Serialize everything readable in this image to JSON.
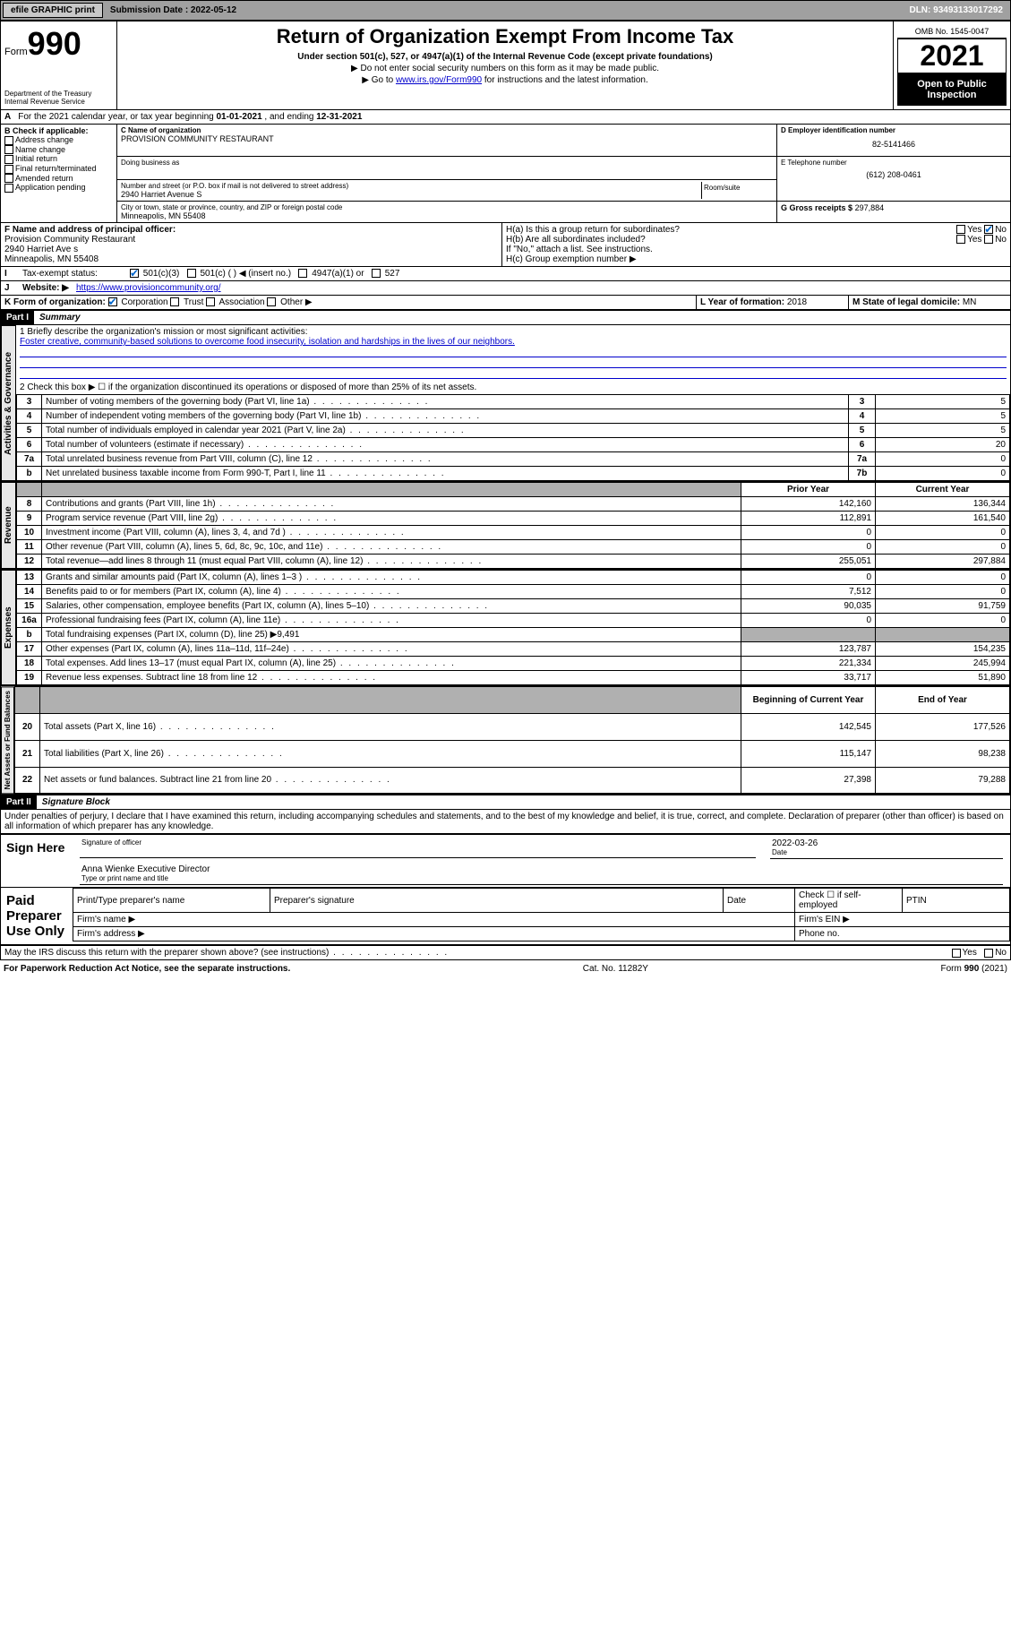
{
  "topbar": {
    "efile": "efile GRAPHIC print",
    "sub_label": "Submission Date : 2022-05-12",
    "dln": "DLN: 93493133017292"
  },
  "header": {
    "form_word": "Form",
    "form_num": "990",
    "dept": "Department of the Treasury",
    "irs": "Internal Revenue Service",
    "title": "Return of Organization Exempt From Income Tax",
    "sub1": "Under section 501(c), 527, or 4947(a)(1) of the Internal Revenue Code (except private foundations)",
    "sub2": "▶ Do not enter social security numbers on this form as it may be made public.",
    "sub3_pre": "▶ Go to ",
    "sub3_link": "www.irs.gov/Form990",
    "sub3_post": " for instructions and the latest information.",
    "omb": "OMB No. 1545-0047",
    "year": "2021",
    "open": "Open to Public Inspection"
  },
  "periodA": {
    "text_pre": "For the 2021 calendar year, or tax year beginning ",
    "begin": "01-01-2021",
    "mid": " , and ending ",
    "end": "12-31-2021"
  },
  "blockB": {
    "label": "B Check if applicable:",
    "items": [
      "Address change",
      "Name change",
      "Initial return",
      "Final return/terminated",
      "Amended return",
      "Application pending"
    ]
  },
  "blockC": {
    "label": "C Name of organization",
    "org": "PROVISION COMMUNITY RESTAURANT",
    "dba_label": "Doing business as",
    "addr_label": "Number and street (or P.O. box if mail is not delivered to street address)",
    "room_label": "Room/suite",
    "addr": "2940 Harriet Avenue S",
    "city_label": "City or town, state or province, country, and ZIP or foreign postal code",
    "city": "Minneapolis, MN  55408"
  },
  "blockD": {
    "label": "D Employer identification number",
    "ein": "82-5141466"
  },
  "blockE": {
    "label": "E Telephone number",
    "phone": "(612) 208-0461"
  },
  "blockG": {
    "label": "G Gross receipts $",
    "amt": "297,884"
  },
  "blockF": {
    "label": "F Name and address of principal officer:",
    "name": "Provision Community Restaurant",
    "addr": "2940 Harriet Ave s",
    "city": "Minneapolis, MN  55408"
  },
  "blockH": {
    "a": "H(a)  Is this a group return for subordinates?",
    "b": "H(b)  Are all subordinates included?",
    "bnote": "If \"No,\" attach a list. See instructions.",
    "c": "H(c)  Group exemption number ▶",
    "yes": "Yes",
    "no": "No"
  },
  "blockI": {
    "label": "Tax-exempt status:",
    "o1": "501(c)(3)",
    "o2": "501(c) (   ) ◀ (insert no.)",
    "o3": "4947(a)(1) or",
    "o4": "527"
  },
  "blockJ": {
    "label": "Website: ▶",
    "url": "https://www.provisioncommunity.org/"
  },
  "blockK": {
    "label": "K Form of organization:",
    "o1": "Corporation",
    "o2": "Trust",
    "o3": "Association",
    "o4": "Other ▶"
  },
  "blockL": {
    "label": "L Year of formation:",
    "val": "2018"
  },
  "blockM": {
    "label": "M State of legal domicile:",
    "val": "MN"
  },
  "part1": {
    "hdr": "Part I",
    "title": "Summary"
  },
  "summary": {
    "l1_label": "1  Briefly describe the organization's mission or most significant activities:",
    "l1_text": "Foster creative, community-based solutions to overcome food insecurity, isolation and hardships in the lives of our neighbors.",
    "l2": "2  Check this box ▶ ☐  if the organization discontinued its operations or disposed of more than 25% of its net assets.",
    "rows_gov": [
      {
        "n": "3",
        "d": "Number of voting members of the governing body (Part VI, line 1a)",
        "box": "3",
        "v": "5"
      },
      {
        "n": "4",
        "d": "Number of independent voting members of the governing body (Part VI, line 1b)",
        "box": "4",
        "v": "5"
      },
      {
        "n": "5",
        "d": "Total number of individuals employed in calendar year 2021 (Part V, line 2a)",
        "box": "5",
        "v": "5"
      },
      {
        "n": "6",
        "d": "Total number of volunteers (estimate if necessary)",
        "box": "6",
        "v": "20"
      },
      {
        "n": "7a",
        "d": "Total unrelated business revenue from Part VIII, column (C), line 12",
        "box": "7a",
        "v": "0"
      },
      {
        "n": "b",
        "d": "Net unrelated business taxable income from Form 990-T, Part I, line 11",
        "box": "7b",
        "v": "0"
      }
    ],
    "hdr_prior": "Prior Year",
    "hdr_curr": "Current Year",
    "rows_rev": [
      {
        "n": "8",
        "d": "Contributions and grants (Part VIII, line 1h)",
        "p": "142,160",
        "c": "136,344"
      },
      {
        "n": "9",
        "d": "Program service revenue (Part VIII, line 2g)",
        "p": "112,891",
        "c": "161,540"
      },
      {
        "n": "10",
        "d": "Investment income (Part VIII, column (A), lines 3, 4, and 7d )",
        "p": "0",
        "c": "0"
      },
      {
        "n": "11",
        "d": "Other revenue (Part VIII, column (A), lines 5, 6d, 8c, 9c, 10c, and 11e)",
        "p": "0",
        "c": "0"
      },
      {
        "n": "12",
        "d": "Total revenue—add lines 8 through 11 (must equal Part VIII, column (A), line 12)",
        "p": "255,051",
        "c": "297,884"
      }
    ],
    "rows_exp": [
      {
        "n": "13",
        "d": "Grants and similar amounts paid (Part IX, column (A), lines 1–3 )",
        "p": "0",
        "c": "0"
      },
      {
        "n": "14",
        "d": "Benefits paid to or for members (Part IX, column (A), line 4)",
        "p": "7,512",
        "c": "0"
      },
      {
        "n": "15",
        "d": "Salaries, other compensation, employee benefits (Part IX, column (A), lines 5–10)",
        "p": "90,035",
        "c": "91,759"
      },
      {
        "n": "16a",
        "d": "Professional fundraising fees (Part IX, column (A), line 11e)",
        "p": "0",
        "c": "0"
      },
      {
        "n": "b",
        "d": "Total fundraising expenses (Part IX, column (D), line 25) ▶9,491",
        "p": "",
        "c": "",
        "gray": true
      },
      {
        "n": "17",
        "d": "Other expenses (Part IX, column (A), lines 11a–11d, 11f–24e)",
        "p": "123,787",
        "c": "154,235"
      },
      {
        "n": "18",
        "d": "Total expenses. Add lines 13–17 (must equal Part IX, column (A), line 25)",
        "p": "221,334",
        "c": "245,994"
      },
      {
        "n": "19",
        "d": "Revenue less expenses. Subtract line 18 from line 12",
        "p": "33,717",
        "c": "51,890"
      }
    ],
    "hdr_begin": "Beginning of Current Year",
    "hdr_end": "End of Year",
    "rows_bal": [
      {
        "n": "20",
        "d": "Total assets (Part X, line 16)",
        "p": "142,545",
        "c": "177,526"
      },
      {
        "n": "21",
        "d": "Total liabilities (Part X, line 26)",
        "p": "115,147",
        "c": "98,238"
      },
      {
        "n": "22",
        "d": "Net assets or fund balances. Subtract line 21 from line 20",
        "p": "27,398",
        "c": "79,288"
      }
    ]
  },
  "vtabs": {
    "gov": "Activities & Governance",
    "rev": "Revenue",
    "exp": "Expenses",
    "bal": "Net Assets or Fund Balances"
  },
  "part2": {
    "hdr": "Part II",
    "title": "Signature Block"
  },
  "sig": {
    "decl": "Under penalties of perjury, I declare that I have examined this return, including accompanying schedules and statements, and to the best of my knowledge and belief, it is true, correct, and complete. Declaration of preparer (other than officer) is based on all information of which preparer has any knowledge.",
    "sign_here": "Sign Here",
    "sig_officer": "Signature of officer",
    "date": "Date",
    "sig_date": "2022-03-26",
    "name_title": "Anna Wienke  Executive Director",
    "name_label": "Type or print name and title",
    "paid": "Paid Preparer Use Only",
    "prep_name": "Print/Type preparer's name",
    "prep_sig": "Preparer's signature",
    "prep_date": "Date",
    "check_se": "Check ☐ if self-employed",
    "ptin": "PTIN",
    "firm_name": "Firm's name  ▶",
    "firm_ein": "Firm's EIN ▶",
    "firm_addr": "Firm's address ▶",
    "phone": "Phone no."
  },
  "footer": {
    "discuss": "May the IRS discuss this return with the preparer shown above? (see instructions)",
    "yes": "Yes",
    "no": "No",
    "pra": "For Paperwork Reduction Act Notice, see the separate instructions.",
    "cat": "Cat. No. 11282Y",
    "form": "Form 990 (2021)"
  }
}
